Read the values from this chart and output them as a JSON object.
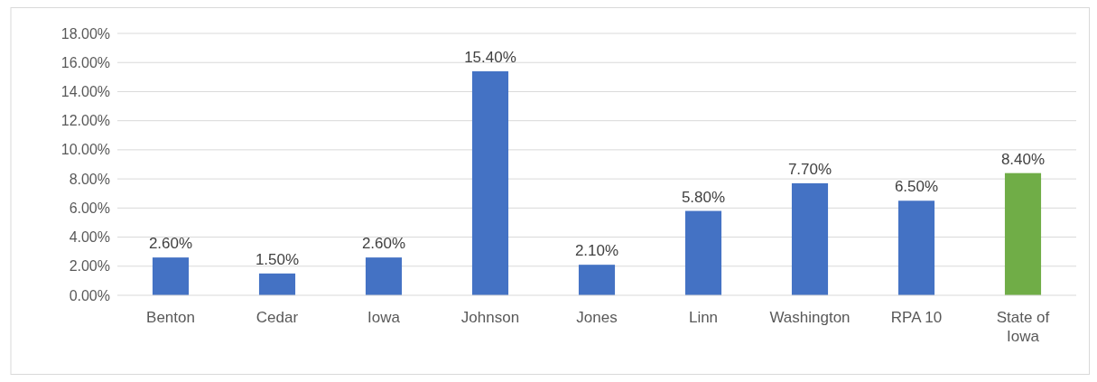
{
  "chart_data": {
    "type": "bar",
    "categories": [
      "Benton",
      "Cedar",
      "Iowa",
      "Johnson",
      "Jones",
      "Linn",
      "Washington",
      "RPA 10",
      "State of Iowa"
    ],
    "values": [
      2.6,
      1.5,
      2.6,
      15.4,
      2.1,
      5.8,
      7.7,
      6.5,
      8.4
    ],
    "colors": [
      "#4472c4",
      "#4472c4",
      "#4472c4",
      "#4472c4",
      "#4472c4",
      "#4472c4",
      "#4472c4",
      "#4472c4",
      "#70ad47"
    ],
    "value_labels": [
      "2.60%",
      "1.50%",
      "2.60%",
      "15.40%",
      "2.10%",
      "5.80%",
      "7.70%",
      "6.50%",
      "8.40%"
    ],
    "ylim": [
      0,
      18
    ],
    "yticks": [
      {
        "value": 0,
        "label": "0.00%"
      },
      {
        "value": 2,
        "label": "2.00%"
      },
      {
        "value": 4,
        "label": "4.00%"
      },
      {
        "value": 6,
        "label": "6.00%"
      },
      {
        "value": 8,
        "label": "8.00%"
      },
      {
        "value": 10,
        "label": "10.00%"
      },
      {
        "value": 12,
        "label": "12.00%"
      },
      {
        "value": 14,
        "label": "14.00%"
      },
      {
        "value": 16,
        "label": "16.00%"
      },
      {
        "value": 18,
        "label": "18.00%"
      }
    ],
    "grid": "y"
  }
}
